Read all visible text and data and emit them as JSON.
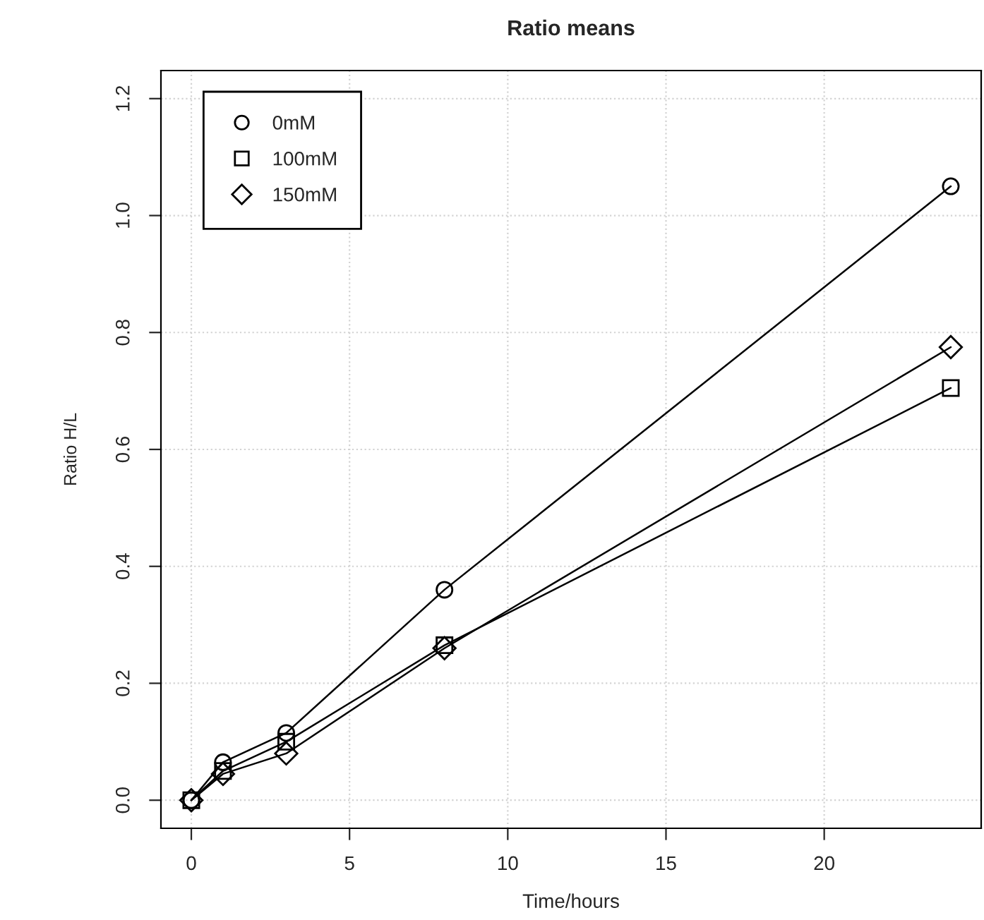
{
  "chart_data": {
    "type": "line",
    "title": "Ratio means",
    "xlabel": "Time/hours",
    "ylabel": "Ratio H/L",
    "x": [
      0,
      1,
      3,
      8,
      24
    ],
    "series": [
      {
        "name": "0mM",
        "color": "#000000",
        "marker": "circle",
        "values": [
          0,
          0.065,
          0.115,
          0.36,
          1.05
        ]
      },
      {
        "name": "100mM",
        "color": "#000000",
        "marker": "square",
        "values": [
          0,
          0.05,
          0.1,
          0.265,
          0.705
        ]
      },
      {
        "name": "150mM",
        "color": "#000000",
        "marker": "diamond",
        "values": [
          0,
          0.045,
          0.08,
          0.26,
          0.775
        ]
      }
    ],
    "xlim": [
      -0.96,
      24.96
    ],
    "xticks": [
      0,
      5,
      10,
      15,
      20
    ],
    "ylim": [
      -0.048,
      1.248
    ],
    "yticks": [
      "0.0",
      0.2,
      0.4,
      0.6,
      0.8,
      "1.0",
      1.2
    ],
    "grid": true,
    "legend": "top left",
    "line_style": "solid"
  }
}
